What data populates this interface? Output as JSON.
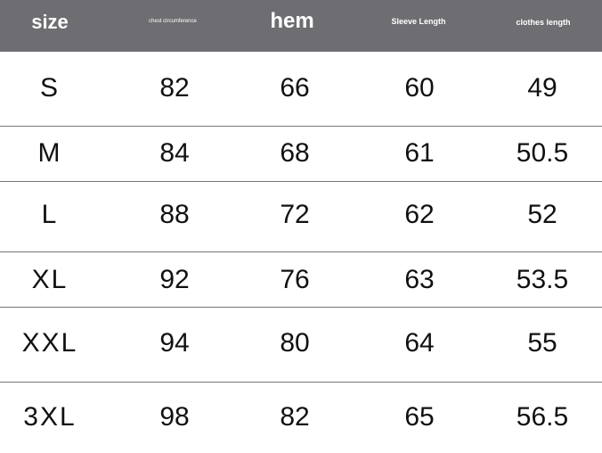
{
  "header": {
    "columns": [
      "size",
      "chest circumference",
      "hem",
      "Sleeve Length",
      "clothes length"
    ],
    "background": "#6e6d72"
  },
  "rows": [
    [
      "S",
      "82",
      "66",
      "60",
      "49"
    ],
    [
      "M",
      "84",
      "68",
      "61",
      "50.5"
    ],
    [
      "L",
      "88",
      "72",
      "62",
      "52"
    ],
    [
      "XL",
      "92",
      "76",
      "63",
      "53.5"
    ],
    [
      "XXL",
      "94",
      "80",
      "64",
      "55"
    ],
    [
      "3XL",
      "98",
      "82",
      "65",
      "56.5"
    ]
  ]
}
